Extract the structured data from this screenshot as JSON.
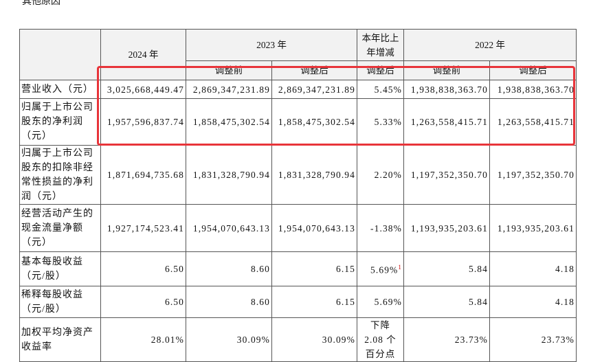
{
  "top_note": "其他原因",
  "table": {
    "header": {
      "year_2024": "2024 年",
      "year_2023": "2023 年",
      "change": [
        "本年比上",
        "年增减"
      ],
      "year_2022": "2022 年",
      "sub": [
        "调整前",
        "调整后",
        "调整后",
        "调整前",
        "调整后"
      ]
    },
    "rows": [
      {
        "label": [
          "营业收入（元）"
        ],
        "cells": [
          "3,025,668,449.47",
          "2,869,347,231.89",
          "2,869,347,231.89",
          "5.45%",
          "1,938,838,363.70",
          "1,938,838,363.70"
        ]
      },
      {
        "label": [
          "归属于上市公司",
          "股东的净利润",
          "（元）"
        ],
        "cells": [
          "1,957,596,837.74",
          "1,858,475,302.54",
          "1,858,475,302.54",
          "5.33%",
          "1,263,558,415.71",
          "1,263,558,415.71"
        ]
      },
      {
        "label": [
          "归属于上市公司",
          "股东的扣除非经",
          "常性损益的净利",
          "润（元）"
        ],
        "cells": [
          "1,871,694,735.68",
          "1,831,328,790.94",
          "1,831,328,790.94",
          "2.20%",
          "1,197,352,350.70",
          "1,197,352,350.70"
        ]
      },
      {
        "label": [
          "经营活动产生的",
          "现金流量净额",
          "（元）"
        ],
        "cells": [
          "1,927,174,523.41",
          "1,954,070,643.13",
          "1,954,070,643.13",
          "-1.38%",
          "1,193,935,203.61",
          "1,193,935,203.61"
        ]
      },
      {
        "label": [
          "基本每股收益",
          "（元/股）"
        ],
        "cells": [
          "6.50",
          "8.60",
          "6.15",
          {
            "text": "5.69%",
            "sup": "1"
          },
          "5.84",
          "4.18"
        ]
      },
      {
        "label": [
          "稀释每股收益",
          "（元/股）"
        ],
        "cells": [
          "6.50",
          "8.60",
          "6.15",
          "5.69%",
          "5.84",
          "4.18"
        ]
      },
      {
        "label": [
          "加权平均净资产",
          "收益率"
        ],
        "cells": [
          "28.01%",
          "30.09%",
          "30.09%",
          [
            "下降",
            "2.08 个",
            "百分点"
          ],
          "23.73%",
          "23.73%"
        ]
      }
    ]
  }
}
